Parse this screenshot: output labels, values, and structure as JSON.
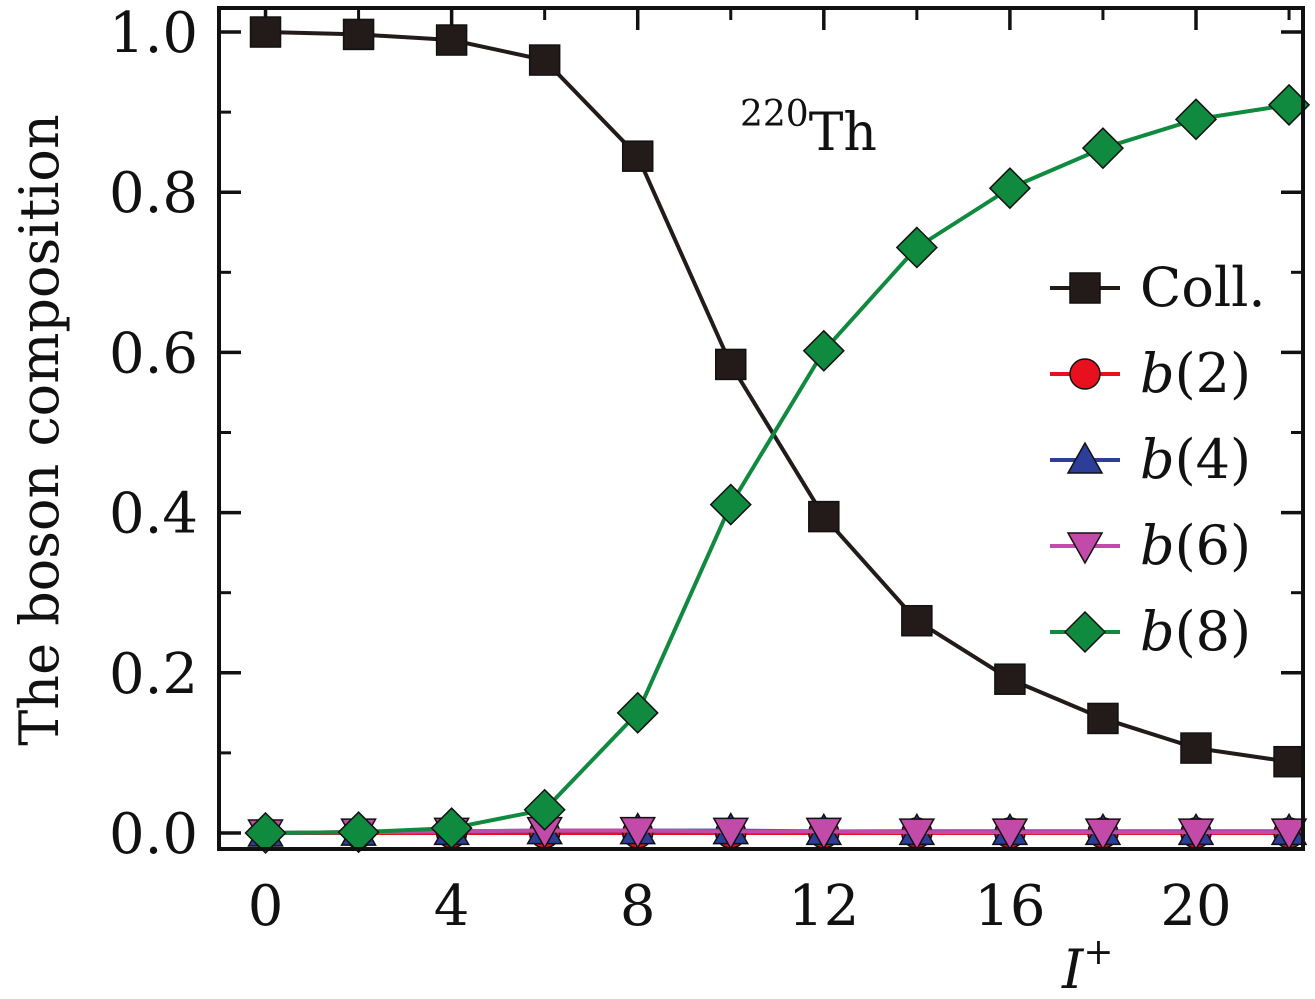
{
  "chart_data": {
    "type": "line",
    "ylabel": "The boson composition",
    "xlabel": "I",
    "xlabel_sup": "+",
    "annotation": {
      "sup": "220",
      "text": "Th"
    },
    "xlim": [
      -1,
      22.3
    ],
    "ylim": [
      -0.02,
      1.03
    ],
    "xticks": [
      0,
      4,
      8,
      12,
      16,
      20
    ],
    "xticks_minor": [
      2,
      6,
      10,
      14,
      18,
      22
    ],
    "yticks": [
      0.0,
      0.2,
      0.4,
      0.6,
      0.8,
      1.0
    ],
    "yticks_minor": [
      0.1,
      0.3,
      0.5,
      0.7,
      0.9
    ],
    "xtick_labels": [
      "0",
      "4",
      "8",
      "12",
      "16",
      "20"
    ],
    "ytick_labels": [
      "0.0",
      "0.2",
      "0.4",
      "0.6",
      "0.8",
      "1.0"
    ],
    "legend_position": "right",
    "x": [
      0,
      2,
      4,
      6,
      8,
      10,
      12,
      14,
      16,
      18,
      20,
      22
    ],
    "series": [
      {
        "name": "Coll.",
        "italic": false,
        "marker": "square",
        "color": "#231a1a",
        "values": [
          1.0,
          0.997,
          0.99,
          0.965,
          0.845,
          0.585,
          0.395,
          0.265,
          0.192,
          0.143,
          0.106,
          0.089
        ]
      },
      {
        "name": "(2)",
        "prefix": "b",
        "italic": true,
        "marker": "circle",
        "color": "#e8101e",
        "values": [
          0.0,
          0.0,
          0.0,
          0.0,
          0.0,
          0.0,
          0.0,
          0.0,
          0.0,
          0.0,
          0.0,
          0.0
        ]
      },
      {
        "name": "(4)",
        "prefix": "b",
        "italic": true,
        "marker": "triangle-up",
        "color": "#2c3e99",
        "values": [
          0.0,
          0.001,
          0.002,
          0.003,
          0.003,
          0.003,
          0.002,
          0.002,
          0.002,
          0.002,
          0.002,
          0.002
        ]
      },
      {
        "name": "(6)",
        "prefix": "b",
        "italic": true,
        "marker": "triangle-down",
        "color": "#c24aa8",
        "values": [
          0.0,
          0.001,
          0.002,
          0.003,
          0.003,
          0.002,
          0.002,
          0.001,
          0.001,
          0.001,
          0.001,
          0.001
        ]
      },
      {
        "name": "(8)",
        "prefix": "b",
        "italic": true,
        "marker": "diamond",
        "color": "#0f8a3f",
        "values": [
          0.0,
          0.001,
          0.006,
          0.029,
          0.15,
          0.41,
          0.602,
          0.731,
          0.805,
          0.855,
          0.891,
          0.909
        ]
      }
    ]
  }
}
